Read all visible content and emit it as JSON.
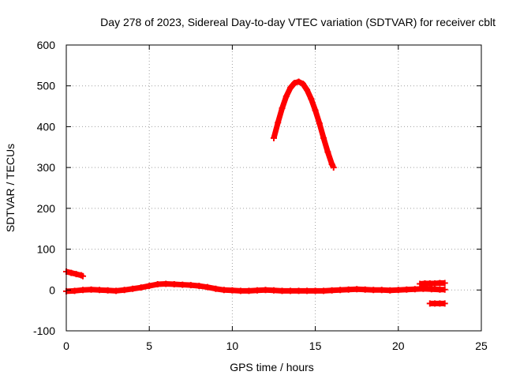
{
  "chart_data": {
    "type": "scatter",
    "title": "Day 278 of 2023, Sidereal Day-to-day VTEC variation (SDTVAR) for receiver cblt",
    "xlabel": "GPS time / hours",
    "ylabel": "SDTVAR / TECUs",
    "xlim": [
      0,
      25
    ],
    "ylim": [
      -100,
      600
    ],
    "xticks": [
      0,
      5,
      10,
      15,
      20,
      25
    ],
    "yticks": [
      -100,
      0,
      100,
      200,
      300,
      400,
      500,
      600
    ],
    "xtick_labels": [
      "0",
      "5",
      "10",
      "15",
      "20",
      "25"
    ],
    "ytick_labels": [
      "-100",
      "0",
      "100",
      "200",
      "300",
      "400",
      "500",
      "600"
    ],
    "grid": true,
    "series_color": "#ff0000",
    "series": [
      {
        "points": [
          [
            0.0,
            45
          ],
          [
            0.3,
            42
          ],
          [
            0.6,
            39
          ],
          [
            0.9,
            36
          ],
          [
            1.0,
            34
          ]
        ]
      },
      {
        "points": [
          [
            0.0,
            -3
          ],
          [
            0.5,
            -2
          ],
          [
            1.0,
            0
          ],
          [
            1.5,
            1
          ],
          [
            2.0,
            0
          ],
          [
            2.5,
            -1
          ],
          [
            3.0,
            -2
          ],
          [
            3.5,
            0
          ],
          [
            4.0,
            3
          ],
          [
            4.5,
            6
          ],
          [
            5.0,
            10
          ],
          [
            5.5,
            14
          ],
          [
            6.0,
            15
          ],
          [
            6.5,
            14
          ],
          [
            7.0,
            13
          ],
          [
            7.5,
            12
          ],
          [
            8.0,
            10
          ],
          [
            8.5,
            7
          ],
          [
            9.0,
            3
          ],
          [
            9.5,
            0
          ],
          [
            10.0,
            -1
          ],
          [
            10.5,
            -2
          ],
          [
            11.0,
            -2
          ],
          [
            11.5,
            -1
          ],
          [
            12.0,
            0
          ],
          [
            12.5,
            -1
          ],
          [
            13.0,
            -2
          ],
          [
            13.5,
            -2
          ],
          [
            14.0,
            -2
          ],
          [
            14.5,
            -2
          ],
          [
            15.0,
            -2
          ],
          [
            15.5,
            -2
          ],
          [
            16.0,
            -1
          ],
          [
            16.5,
            0
          ],
          [
            17.0,
            1
          ],
          [
            17.5,
            2
          ],
          [
            18.0,
            1
          ],
          [
            18.5,
            0
          ],
          [
            19.0,
            0
          ],
          [
            19.5,
            -1
          ],
          [
            20.0,
            0
          ],
          [
            20.5,
            1
          ],
          [
            21.0,
            2
          ],
          [
            21.5,
            3
          ],
          [
            22.0,
            2
          ],
          [
            22.5,
            1
          ],
          [
            22.8,
            1
          ]
        ]
      },
      {
        "points": [
          [
            12.5,
            372
          ],
          [
            12.75,
            410
          ],
          [
            13.0,
            445
          ],
          [
            13.25,
            474
          ],
          [
            13.5,
            495
          ],
          [
            13.75,
            507
          ],
          [
            14.0,
            510
          ],
          [
            14.25,
            505
          ],
          [
            14.5,
            490
          ],
          [
            14.75,
            468
          ],
          [
            15.0,
            440
          ],
          [
            15.25,
            408
          ],
          [
            15.5,
            372
          ],
          [
            15.75,
            338
          ],
          [
            16.0,
            308
          ],
          [
            16.1,
            300
          ]
        ]
      },
      {
        "points": [
          [
            21.3,
            15
          ],
          [
            21.6,
            16
          ],
          [
            21.9,
            16
          ],
          [
            22.2,
            16
          ],
          [
            22.5,
            17
          ],
          [
            22.8,
            17
          ]
        ]
      },
      {
        "points": [
          [
            21.9,
            -33
          ],
          [
            22.2,
            -33
          ],
          [
            22.5,
            -33
          ],
          [
            22.8,
            -33
          ]
        ]
      }
    ]
  }
}
